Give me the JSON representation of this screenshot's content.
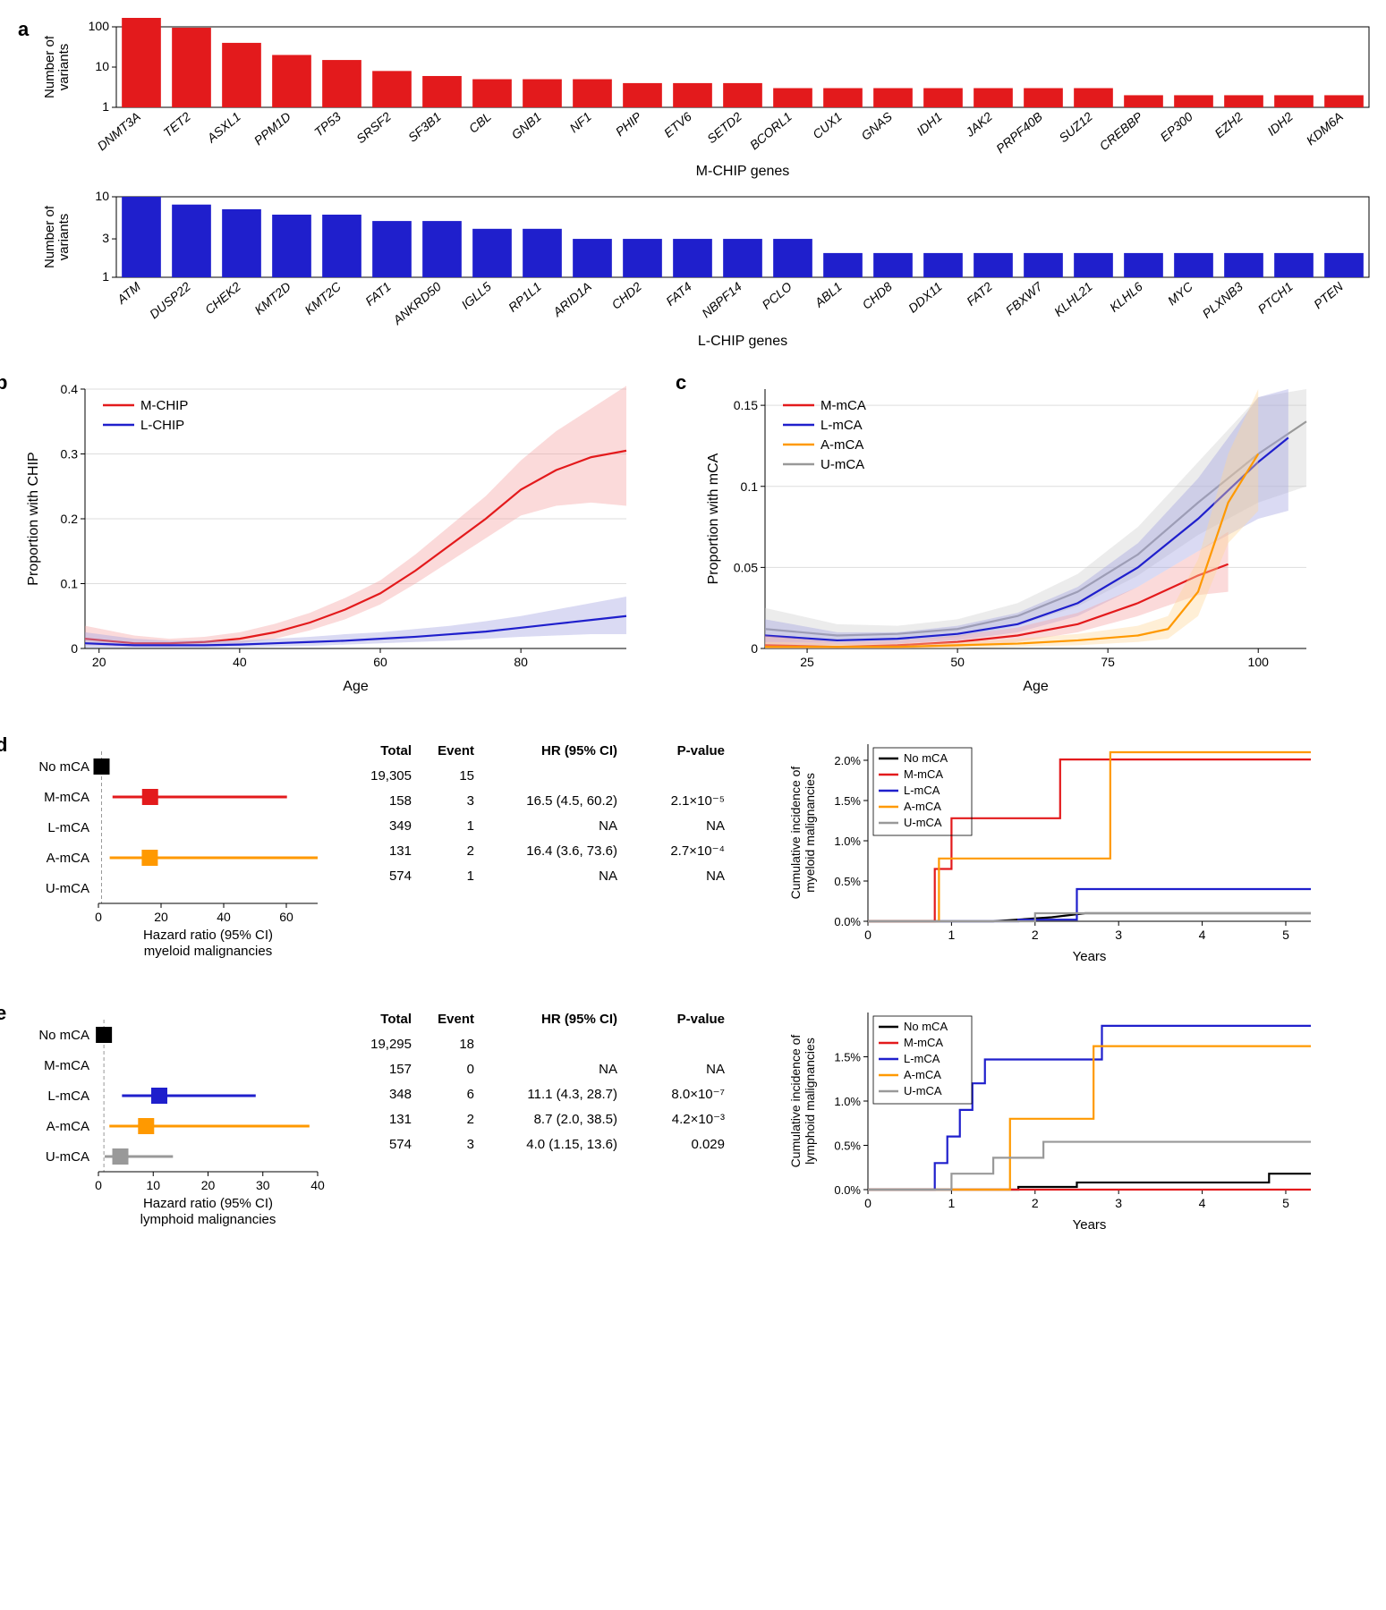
{
  "colors": {
    "red": "#e31a1c",
    "blue": "#1f1fcc",
    "orange": "#ff9900",
    "grey": "#999999",
    "black": "#000000",
    "red_fill": "#f5a3a3",
    "blue_fill": "#a3a3e0",
    "orange_fill": "#ffd699",
    "grey_fill": "#d0d0d0"
  },
  "panel_a": {
    "mchip": {
      "ylabel": "Number of\nvariants",
      "xlabel": "M-CHIP genes",
      "yticks": [
        1,
        10,
        100
      ],
      "genes": [
        "DNMT3A",
        "TET2",
        "ASXL1",
        "PPM1D",
        "TP53",
        "SRSF2",
        "SF3B1",
        "CBL",
        "GNB1",
        "NF1",
        "PHIP",
        "ETV6",
        "SETD2",
        "BCORL1",
        "CUX1",
        "GNAS",
        "IDH1",
        "JAK2",
        "PRPF40B",
        "SUZ12",
        "CREBBP",
        "EP300",
        "EZH2",
        "IDH2",
        "KDM6A"
      ],
      "values": [
        200,
        95,
        40,
        20,
        15,
        8,
        6,
        5,
        5,
        5,
        4,
        4,
        4,
        3,
        3,
        3,
        3,
        3,
        3,
        3,
        2,
        2,
        2,
        2,
        2
      ],
      "bar_color": "#e31a1c"
    },
    "lchip": {
      "ylabel": "Number of\nvariants",
      "xlabel": "L-CHIP genes",
      "yticks": [
        1,
        3,
        10
      ],
      "genes": [
        "ATM",
        "DUSP22",
        "CHEK2",
        "KMT2D",
        "KMT2C",
        "FAT1",
        "ANKRD50",
        "IGLL5",
        "RP1L1",
        "ARID1A",
        "CHD2",
        "FAT4",
        "NBPF14",
        "PCLO",
        "ABL1",
        "CHD8",
        "DDX11",
        "FAT2",
        "FBXW7",
        "KLHL21",
        "KLHL6",
        "MYC",
        "PLXNB3",
        "PTCH1",
        "PTEN"
      ],
      "values": [
        10,
        8,
        7,
        6,
        6,
        5,
        5,
        4,
        4,
        3,
        3,
        3,
        3,
        3,
        2,
        2,
        2,
        2,
        2,
        2,
        2,
        2,
        2,
        2,
        2
      ],
      "bar_color": "#1f1fcc"
    }
  },
  "panel_b": {
    "ylabel": "Proportion with CHIP",
    "xlabel": "Age",
    "xlim": [
      18,
      95
    ],
    "xticks": [
      20,
      40,
      60,
      80
    ],
    "ylim": [
      0,
      0.4
    ],
    "yticks": [
      0,
      0.1,
      0.2,
      0.3,
      0.4
    ],
    "legend": [
      "M-CHIP",
      "L-CHIP"
    ],
    "legend_colors": [
      "#e31a1c",
      "#1f1fcc"
    ],
    "mchip_x": [
      18,
      25,
      30,
      35,
      40,
      45,
      50,
      55,
      60,
      65,
      70,
      75,
      80,
      85,
      90,
      95
    ],
    "mchip_y": [
      0.015,
      0.008,
      0.008,
      0.01,
      0.015,
      0.025,
      0.04,
      0.06,
      0.085,
      0.12,
      0.16,
      0.2,
      0.245,
      0.275,
      0.295,
      0.305
    ],
    "mchip_lo": [
      0.005,
      0.003,
      0.003,
      0.005,
      0.008,
      0.015,
      0.028,
      0.045,
      0.068,
      0.1,
      0.135,
      0.17,
      0.205,
      0.22,
      0.225,
      0.22
    ],
    "mchip_hi": [
      0.035,
      0.02,
      0.015,
      0.018,
      0.025,
      0.038,
      0.055,
      0.078,
      0.105,
      0.145,
      0.19,
      0.235,
      0.29,
      0.335,
      0.37,
      0.405
    ],
    "lchip_x": [
      18,
      25,
      30,
      35,
      40,
      45,
      50,
      55,
      60,
      65,
      70,
      75,
      80,
      85,
      90,
      95
    ],
    "lchip_y": [
      0.008,
      0.005,
      0.005,
      0.005,
      0.006,
      0.008,
      0.01,
      0.012,
      0.015,
      0.018,
      0.022,
      0.026,
      0.032,
      0.038,
      0.044,
      0.05
    ],
    "lchip_lo": [
      0.001,
      0.001,
      0.001,
      0.001,
      0.002,
      0.003,
      0.004,
      0.006,
      0.008,
      0.01,
      0.012,
      0.015,
      0.018,
      0.02,
      0.022,
      0.022
    ],
    "lchip_hi": [
      0.025,
      0.015,
      0.012,
      0.012,
      0.012,
      0.015,
      0.018,
      0.022,
      0.025,
      0.03,
      0.035,
      0.042,
      0.05,
      0.06,
      0.07,
      0.08
    ]
  },
  "panel_c": {
    "ylabel": "Proportion with mCA",
    "xlabel": "Age",
    "xlim": [
      18,
      108
    ],
    "xticks": [
      25,
      50,
      75,
      100
    ],
    "ylim": [
      0,
      0.16
    ],
    "yticks": [
      0,
      0.05,
      0.1,
      0.15
    ],
    "legend": [
      "M-mCA",
      "L-mCA",
      "A-mCA",
      "U-mCA"
    ],
    "legend_colors": [
      "#e31a1c",
      "#1f1fcc",
      "#ff9900",
      "#999999"
    ],
    "series": {
      "m": {
        "color": "#e31a1c",
        "fill": "#f5a3a3",
        "x": [
          18,
          30,
          40,
          50,
          60,
          70,
          80,
          90,
          95
        ],
        "y": [
          0.002,
          0.001,
          0.002,
          0.004,
          0.008,
          0.015,
          0.028,
          0.045,
          0.052
        ],
        "lo": [
          0,
          0,
          0,
          0.001,
          0.004,
          0.01,
          0.02,
          0.033,
          0.035
        ],
        "hi": [
          0.008,
          0.004,
          0.005,
          0.008,
          0.013,
          0.022,
          0.038,
          0.06,
          0.072
        ]
      },
      "l": {
        "color": "#1f1fcc",
        "fill": "#a3a3e0",
        "x": [
          18,
          30,
          40,
          50,
          60,
          70,
          80,
          90,
          100,
          105
        ],
        "y": [
          0.008,
          0.005,
          0.006,
          0.009,
          0.015,
          0.028,
          0.05,
          0.08,
          0.115,
          0.13
        ],
        "lo": [
          0.002,
          0.002,
          0.003,
          0.005,
          0.01,
          0.02,
          0.038,
          0.06,
          0.08,
          0.085
        ],
        "hi": [
          0.018,
          0.01,
          0.01,
          0.014,
          0.022,
          0.038,
          0.065,
          0.105,
          0.155,
          0.16
        ]
      },
      "a": {
        "color": "#ff9900",
        "fill": "#ffd699",
        "x": [
          18,
          30,
          40,
          50,
          60,
          70,
          80,
          85,
          90,
          95,
          100
        ],
        "y": [
          0.001,
          0.001,
          0.001,
          0.002,
          0.003,
          0.005,
          0.008,
          0.012,
          0.035,
          0.09,
          0.12
        ],
        "lo": [
          0,
          0,
          0,
          0,
          0.001,
          0.002,
          0.004,
          0.006,
          0.02,
          0.065,
          0.085
        ],
        "hi": [
          0.004,
          0.003,
          0.003,
          0.004,
          0.006,
          0.009,
          0.014,
          0.02,
          0.055,
          0.12,
          0.16
        ]
      },
      "u": {
        "color": "#999999",
        "fill": "#d0d0d0",
        "x": [
          18,
          30,
          40,
          50,
          60,
          70,
          80,
          90,
          100,
          108
        ],
        "y": [
          0.012,
          0.008,
          0.009,
          0.012,
          0.02,
          0.035,
          0.058,
          0.09,
          0.12,
          0.14
        ],
        "lo": [
          0.004,
          0.004,
          0.005,
          0.007,
          0.014,
          0.026,
          0.045,
          0.07,
          0.09,
          0.1
        ],
        "hi": [
          0.025,
          0.015,
          0.014,
          0.018,
          0.028,
          0.046,
          0.075,
          0.115,
          0.155,
          0.16
        ]
      }
    }
  },
  "panel_d": {
    "forest": {
      "xlabel": "Hazard ratio (95% CI)\nmyeloid malignancies",
      "xlim": [
        0,
        70
      ],
      "xticks": [
        0,
        20,
        40,
        60
      ],
      "rows": [
        {
          "label": "No mCA",
          "color": "#000000",
          "point": 1,
          "lo": null,
          "hi": null
        },
        {
          "label": "M-mCA",
          "color": "#e31a1c",
          "point": 16.5,
          "lo": 4.5,
          "hi": 60.2
        },
        {
          "label": "L-mCA",
          "color": "#1f1fcc",
          "point": null,
          "lo": null,
          "hi": null
        },
        {
          "label": "A-mCA",
          "color": "#ff9900",
          "point": 16.4,
          "lo": 3.6,
          "hi": 73.6
        },
        {
          "label": "U-mCA",
          "color": "#999999",
          "point": null,
          "lo": null,
          "hi": null
        }
      ]
    },
    "table": {
      "headers": [
        "Total",
        "Event",
        "HR (95% CI)",
        "P-value"
      ],
      "rows": [
        [
          "19,305",
          "15",
          "",
          ""
        ],
        [
          "158",
          "3",
          "16.5 (4.5, 60.2)",
          "2.1×10⁻⁵"
        ],
        [
          "349",
          "1",
          "NA",
          "NA"
        ],
        [
          "131",
          "2",
          "16.4 (3.6, 73.6)",
          "2.7×10⁻⁴"
        ],
        [
          "574",
          "1",
          "NA",
          "NA"
        ]
      ]
    },
    "cuminc": {
      "ylabel": "Cumulative incidence of\nmyeloid malignancies",
      "xlabel": "Years",
      "xlim": [
        0,
        5.3
      ],
      "xticks": [
        0,
        1,
        2,
        3,
        4,
        5
      ],
      "ylim": [
        0,
        0.022
      ],
      "yticks": [
        0,
        0.005,
        0.01,
        0.015,
        0.02
      ],
      "ytick_labels": [
        "0.0%",
        "0.5%",
        "1.0%",
        "1.5%",
        "2.0%"
      ],
      "legend": [
        "No mCA",
        "M-mCA",
        "L-mCA",
        "A-mCA",
        "U-mCA"
      ],
      "legend_colors": [
        "#000000",
        "#e31a1c",
        "#1f1fcc",
        "#ff9900",
        "#999999"
      ],
      "series": {
        "no": {
          "c": "#000000",
          "x": [
            0,
            1.5,
            2.2,
            2.6,
            5.3
          ],
          "y": [
            0,
            0,
            0.0005,
            0.001,
            0.001
          ]
        },
        "m": {
          "c": "#e31a1c",
          "x": [
            0,
            0.8,
            0.8,
            1.0,
            1.0,
            2.3,
            2.3,
            5.3
          ],
          "y": [
            0,
            0,
            0.0065,
            0.0065,
            0.0128,
            0.0128,
            0.0201,
            0.0201
          ]
        },
        "l": {
          "c": "#1f1fcc",
          "x": [
            0,
            1.8,
            1.8,
            2.5,
            2.5,
            5.3
          ],
          "y": [
            0,
            0,
            0.0002,
            0.0002,
            0.004,
            0.004
          ]
        },
        "a": {
          "c": "#ff9900",
          "x": [
            0,
            0.85,
            0.85,
            2.9,
            2.9,
            5.3
          ],
          "y": [
            0,
            0,
            0.0078,
            0.0078,
            0.021,
            0.021
          ]
        },
        "u": {
          "c": "#999999",
          "x": [
            0,
            2.0,
            2.0,
            5.3
          ],
          "y": [
            0,
            0,
            0.001,
            0.001
          ]
        }
      }
    }
  },
  "panel_e": {
    "forest": {
      "xlabel": "Hazard ratio (95% CI)\nlymphoid malignancies",
      "xlim": [
        0,
        40
      ],
      "xticks": [
        0,
        10,
        20,
        30,
        40
      ],
      "rows": [
        {
          "label": "No mCA",
          "color": "#000000",
          "point": 1,
          "lo": null,
          "hi": null
        },
        {
          "label": "M-mCA",
          "color": "#e31a1c",
          "point": null,
          "lo": null,
          "hi": null
        },
        {
          "label": "L-mCA",
          "color": "#1f1fcc",
          "point": 11.1,
          "lo": 4.3,
          "hi": 28.7
        },
        {
          "label": "A-mCA",
          "color": "#ff9900",
          "point": 8.7,
          "lo": 2.0,
          "hi": 38.5
        },
        {
          "label": "U-mCA",
          "color": "#999999",
          "point": 4.0,
          "lo": 1.15,
          "hi": 13.6
        }
      ]
    },
    "table": {
      "headers": [
        "Total",
        "Event",
        "HR (95% CI)",
        "P-value"
      ],
      "rows": [
        [
          "19,295",
          "18",
          "",
          ""
        ],
        [
          "157",
          "0",
          "NA",
          "NA"
        ],
        [
          "348",
          "6",
          "11.1 (4.3, 28.7)",
          "8.0×10⁻⁷"
        ],
        [
          "131",
          "2",
          "8.7 (2.0, 38.5)",
          "4.2×10⁻³"
        ],
        [
          "574",
          "3",
          "4.0 (1.15, 13.6)",
          "0.029"
        ]
      ]
    },
    "cuminc": {
      "ylabel": "Cumulative incidence of\nlymphoid malignancies",
      "xlabel": "Years",
      "xlim": [
        0,
        5.3
      ],
      "xticks": [
        0,
        1,
        2,
        3,
        4,
        5
      ],
      "ylim": [
        0,
        0.02
      ],
      "yticks": [
        0,
        0.005,
        0.01,
        0.015
      ],
      "ytick_labels": [
        "0.0%",
        "0.5%",
        "1.0%",
        "1.5%"
      ],
      "legend": [
        "No mCA",
        "M-mCA",
        "L-mCA",
        "A-mCA",
        "U-mCA"
      ],
      "legend_colors": [
        "#000000",
        "#e31a1c",
        "#1f1fcc",
        "#ff9900",
        "#999999"
      ],
      "series": {
        "no": {
          "c": "#000000",
          "x": [
            0,
            1.8,
            1.8,
            2.5,
            2.5,
            4.8,
            4.8,
            5.3
          ],
          "y": [
            0,
            0,
            0.0003,
            0.0003,
            0.0008,
            0.0008,
            0.0018,
            0.0018
          ]
        },
        "m": {
          "c": "#e31a1c",
          "x": [
            0,
            5.3
          ],
          "y": [
            0,
            0
          ]
        },
        "l": {
          "c": "#1f1fcc",
          "x": [
            0,
            0.8,
            0.8,
            0.95,
            0.95,
            1.1,
            1.1,
            1.25,
            1.25,
            1.4,
            1.4,
            2.8,
            2.8,
            5.3
          ],
          "y": [
            0,
            0,
            0.003,
            0.003,
            0.006,
            0.006,
            0.009,
            0.009,
            0.012,
            0.012,
            0.0147,
            0.0147,
            0.0185,
            0.0185
          ]
        },
        "a": {
          "c": "#ff9900",
          "x": [
            0,
            1.7,
            1.7,
            2.7,
            2.7,
            5.3
          ],
          "y": [
            0,
            0,
            0.008,
            0.008,
            0.0162,
            0.0162
          ]
        },
        "u": {
          "c": "#999999",
          "x": [
            0,
            1.0,
            1.0,
            1.5,
            1.5,
            2.1,
            2.1,
            5.3
          ],
          "y": [
            0,
            0,
            0.0018,
            0.0018,
            0.0036,
            0.0036,
            0.0054,
            0.0054
          ]
        }
      }
    }
  }
}
